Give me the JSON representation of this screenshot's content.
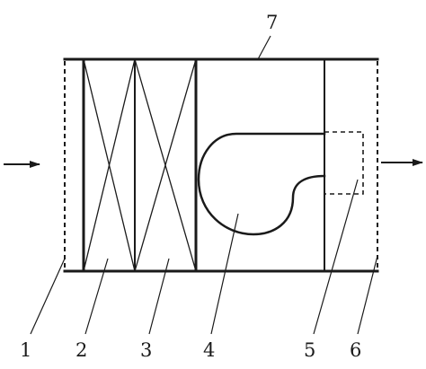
{
  "diagram": {
    "labels": {
      "l1": "1",
      "l2": "2",
      "l3": "3",
      "l4": "4",
      "l5": "5",
      "l6": "6",
      "l7": "7"
    }
  }
}
